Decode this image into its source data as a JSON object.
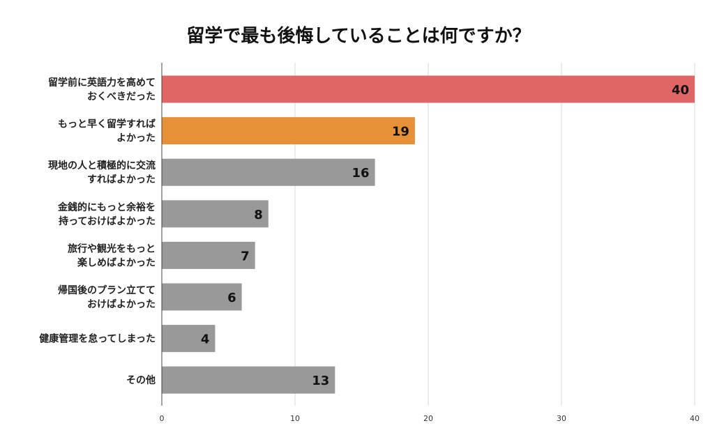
{
  "chart_data": {
    "type": "bar",
    "orientation": "horizontal",
    "title": "留学で最も後悔していることは何ですか？",
    "categories": [
      [
        "留学前に英語力を高めて",
        "おくべきだった"
      ],
      [
        "もっと早く留学すれば",
        "よかった"
      ],
      [
        "現地の人と積極的に交流",
        "すればよかった"
      ],
      [
        "金銭的にもっと余裕を",
        "持っておけばよかった"
      ],
      [
        "旅行や観光をもっと",
        "楽しめばよかった"
      ],
      [
        "帰国後のプラン立てて",
        "おけばよかった"
      ],
      [
        "健康管理を怠ってしまった"
      ],
      [
        "その他"
      ]
    ],
    "values": [
      40,
      19,
      16,
      8,
      7,
      6,
      4,
      13
    ],
    "bar_colors": [
      "#e06666",
      "#e69138",
      "#999999",
      "#999999",
      "#999999",
      "#999999",
      "#999999",
      "#999999"
    ],
    "xlim": [
      0,
      40
    ],
    "xticks": [
      0,
      10,
      20,
      30,
      40
    ],
    "grid": true,
    "data_labels": true,
    "legend": "none"
  }
}
